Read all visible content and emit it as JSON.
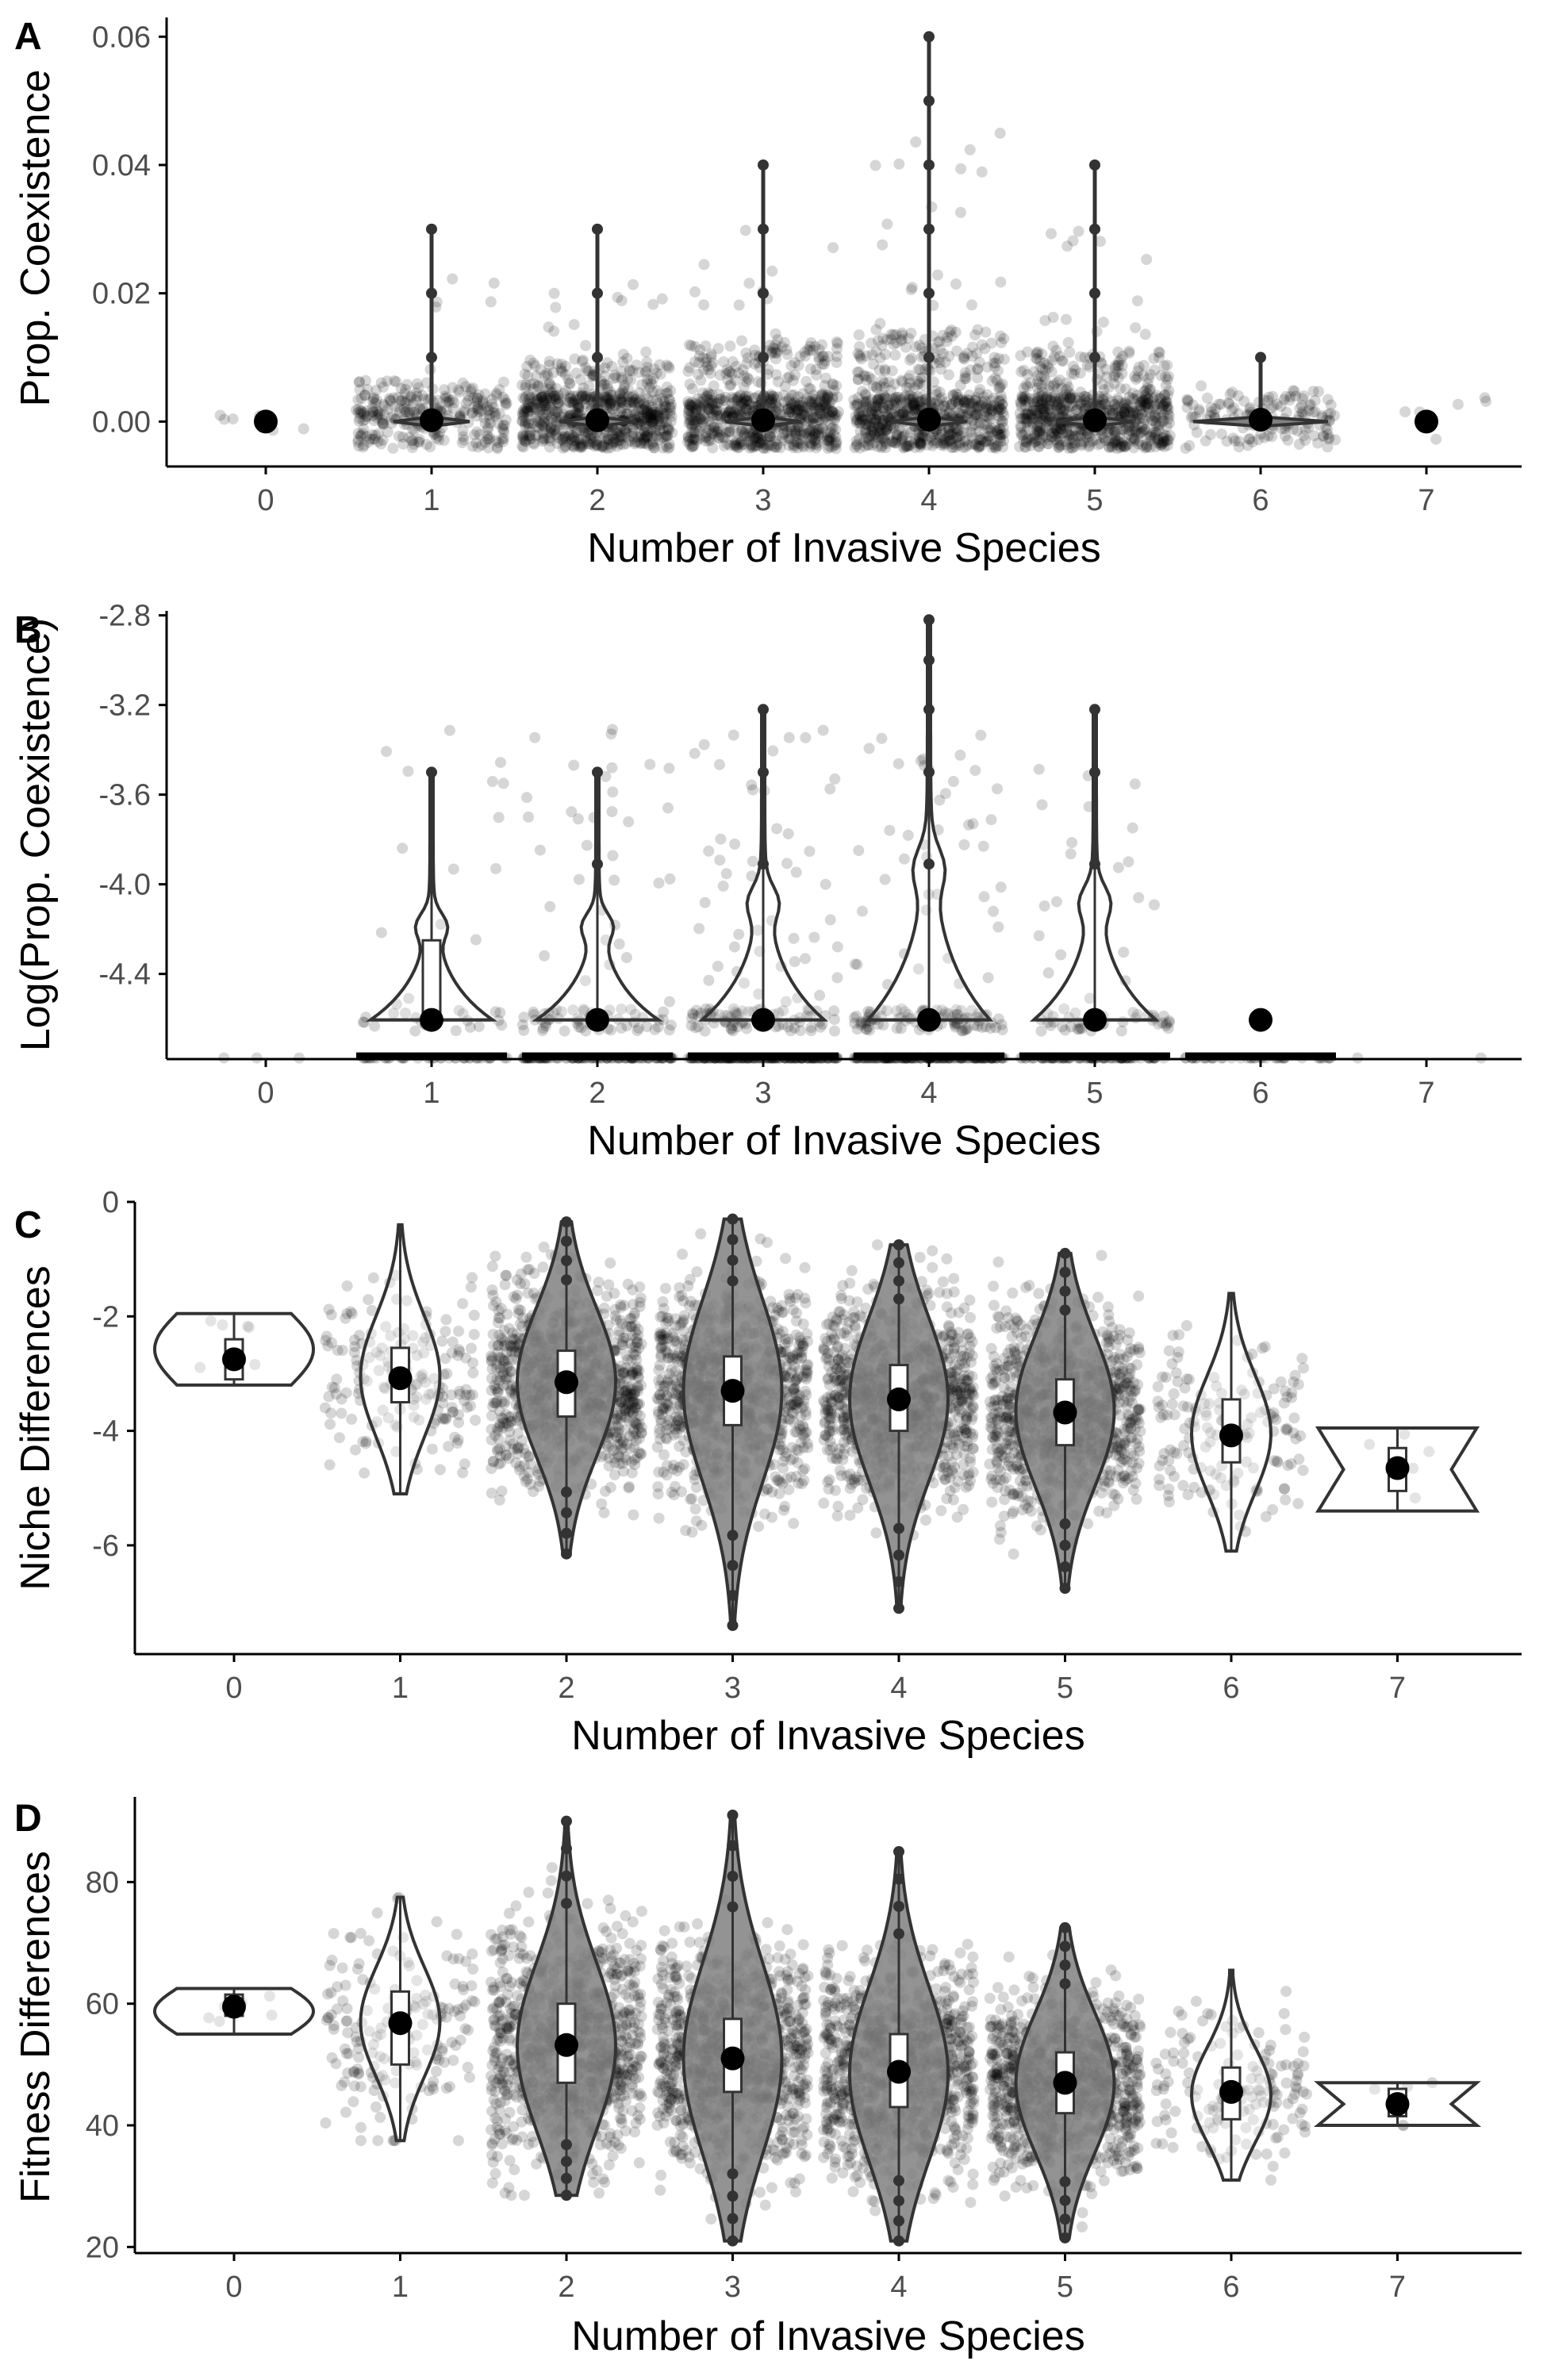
{
  "colors": {
    "jitter": "#000000",
    "violin_stroke": "#333333",
    "violin_fill_dense": "#808080",
    "violin_fill_sparse": "#ffffff",
    "box_fill": "#ffffff",
    "mean_point": "#000000",
    "axis": "#000000",
    "tick_text": "#4d4d4d"
  },
  "chart_data": [
    {
      "panel": "A",
      "type": "violin",
      "xlabel": "Number of Invasive Species",
      "ylabel": "Prop. Coexistence",
      "categories": [
        "0",
        "1",
        "2",
        "3",
        "4",
        "5",
        "6",
        "7"
      ],
      "yticks": [
        "0.00",
        "0.02",
        "0.04",
        "0.06"
      ],
      "ytick_values": [
        0,
        0.02,
        0.04,
        0.06
      ],
      "ylim": [
        -0.007,
        0.063
      ],
      "counts": [
        6,
        280,
        900,
        1300,
        1300,
        700,
        140,
        6
      ],
      "spread": [
        0.002,
        0.004,
        0.006,
        0.008,
        0.009,
        0.007,
        0.003,
        0.002
      ],
      "max_values": [
        0,
        0.03,
        0.03,
        0.04,
        0.06,
        0.04,
        0.01,
        0
      ],
      "means": [
        0,
        0.0002,
        0.0002,
        0.0002,
        0.0003,
        0.0002,
        0.0003,
        0
      ],
      "outliers": [
        [],
        [
          0.01,
          0.02,
          0.03
        ],
        [
          0.01,
          0.02,
          0.03
        ],
        [
          0.01,
          0.02,
          0.03,
          0.04
        ],
        [
          0.01,
          0.02,
          0.03,
          0.04,
          0.05,
          0.06
        ],
        [
          0.01,
          0.02,
          0.03,
          0.04
        ],
        [
          0.01
        ],
        []
      ]
    },
    {
      "panel": "B",
      "type": "violin",
      "xlabel": "Number of Invasive Species",
      "ylabel": "Log(Prop. Coexistence)",
      "categories": [
        "0",
        "1",
        "2",
        "3",
        "4",
        "5",
        "6",
        "7"
      ],
      "yticks": [
        "-4.4",
        "-4.0",
        "-3.6",
        "-3.2",
        "-2.8"
      ],
      "ytick_values": [
        -4.4,
        -4.0,
        -3.6,
        -3.2,
        -2.8
      ],
      "ylim": [
        -4.78,
        -2.78
      ],
      "counts": [
        3,
        80,
        200,
        300,
        300,
        150,
        40,
        2
      ],
      "violin_top": [
        null,
        -3.5,
        -3.5,
        -3.22,
        -2.82,
        -3.22,
        null,
        null
      ],
      "means": [
        null,
        -4.605,
        -4.605,
        -4.605,
        -4.605,
        -4.605,
        -4.605,
        null
      ],
      "outliers": [
        [],
        [
          -3.5
        ],
        [
          -3.5,
          -3.91
        ],
        [
          -3.22,
          -3.5,
          -3.91
        ],
        [
          -2.82,
          -3.0,
          -3.22,
          -3.5,
          -3.91
        ],
        [
          -3.22,
          -3.5,
          -3.91
        ],
        [],
        []
      ]
    },
    {
      "panel": "C",
      "type": "violin",
      "xlabel": "Number of Invasive Species",
      "ylabel": "Niche Differences",
      "categories": [
        "0",
        "1",
        "2",
        "3",
        "4",
        "5",
        "6",
        "7"
      ],
      "yticks": [
        "-6",
        "-4",
        "-2",
        "0"
      ],
      "ytick_values": [
        -6,
        -4,
        -2,
        0
      ],
      "ylim": [
        -7.9,
        0
      ],
      "means": [
        -2.75,
        -3.08,
        -3.15,
        -3.3,
        -3.45,
        -3.68,
        -4.08,
        -4.65
      ],
      "medians": [
        -2.7,
        -3.05,
        -3.15,
        -3.3,
        -3.45,
        -3.65,
        -4.05,
        -4.65
      ],
      "q1": [
        -3.1,
        -3.5,
        -3.75,
        -3.9,
        -4.0,
        -4.25,
        -4.55,
        -5.05
      ],
      "q3": [
        -2.4,
        -2.55,
        -2.6,
        -2.7,
        -2.85,
        -3.1,
        -3.45,
        -4.3
      ],
      "min": [
        -3.2,
        -5.1,
        -6.15,
        -7.4,
        -7.1,
        -6.75,
        -6.1,
        -5.4
      ],
      "max": [
        -1.95,
        -0.4,
        -0.35,
        -0.3,
        -0.75,
        -0.9,
        -1.6,
        -3.95
      ],
      "counts": [
        6,
        180,
        1200,
        2000,
        2000,
        900,
        160,
        5
      ]
    },
    {
      "panel": "D",
      "type": "violin",
      "xlabel": "Number of Invasive Species",
      "ylabel": "Fitness Differences",
      "categories": [
        "0",
        "1",
        "2",
        "3",
        "4",
        "5",
        "6",
        "7"
      ],
      "yticks": [
        "20",
        "40",
        "60",
        "80"
      ],
      "ytick_values": [
        20,
        40,
        60,
        80
      ],
      "ylim": [
        19,
        94
      ],
      "means": [
        59.5,
        56.8,
        53.2,
        51.0,
        48.8,
        47.0,
        45.5,
        43.5
      ],
      "medians": [
        59.0,
        57.0,
        53.0,
        51.0,
        48.5,
        47.0,
        45.0,
        43.5
      ],
      "q1": [
        58.0,
        50.0,
        47.0,
        45.5,
        43.0,
        42.0,
        41.0,
        41.5
      ],
      "q3": [
        61.5,
        62.0,
        60.0,
        57.5,
        55.0,
        52.0,
        49.5,
        46.0
      ],
      "min": [
        55.0,
        37.5,
        28.5,
        21.0,
        21.0,
        21.5,
        31.0,
        40.0
      ],
      "max": [
        62.5,
        77.5,
        90.0,
        91.0,
        85.0,
        72.5,
        65.5,
        47.0
      ],
      "counts": [
        6,
        180,
        1200,
        2000,
        2000,
        900,
        160,
        5
      ]
    }
  ]
}
